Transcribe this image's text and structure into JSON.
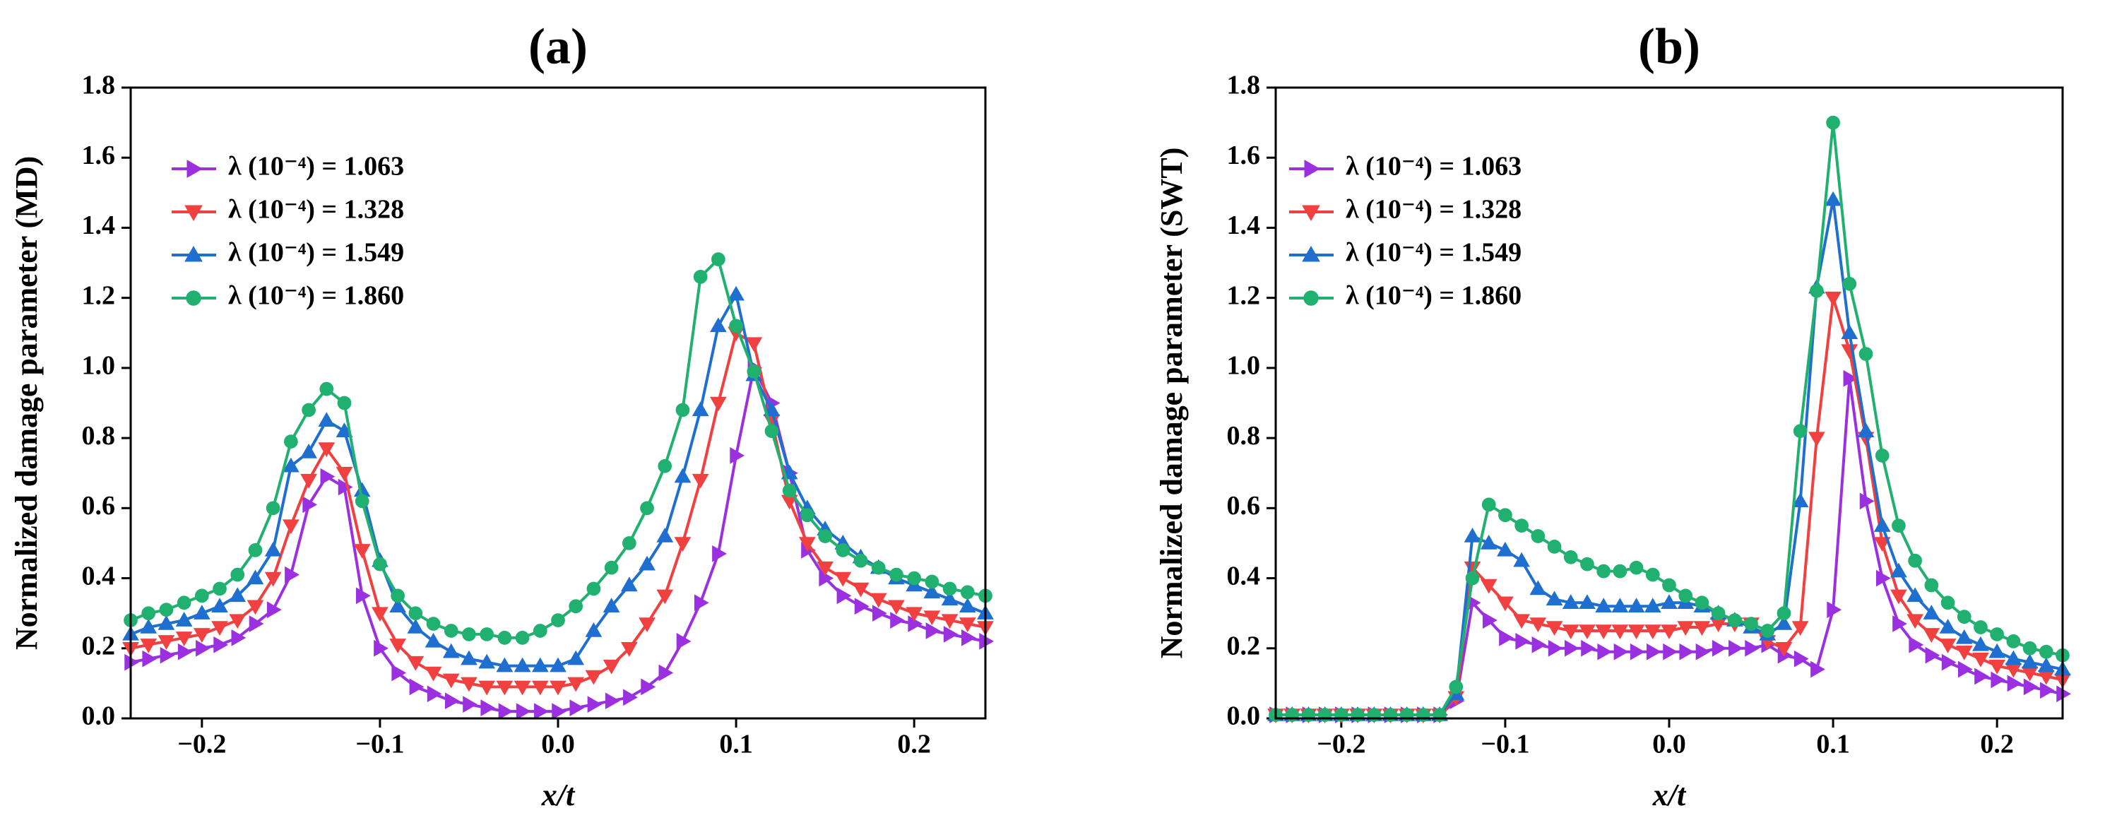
{
  "chart_data": [
    {
      "type": "line",
      "title": "(a)",
      "x_label": "x/t",
      "y_label": "Normalized damage parameter (MD)",
      "xlim": [
        -0.24,
        0.24
      ],
      "ylim": [
        0,
        1.8
      ],
      "xticks": [
        {
          "value": -0.2,
          "label": "−0.2"
        },
        {
          "value": -0.1,
          "label": "−0.1"
        },
        {
          "value": 0,
          "label": "0.0"
        },
        0.1,
        0.2
      ],
      "yticks": [
        {
          "value": 0,
          "label": "0.0"
        },
        0.2,
        0.4,
        0.6,
        0.8,
        {
          "value": 1,
          "label": "1.0"
        },
        1.2,
        1.4,
        1.6,
        1.8
      ],
      "legend": "upper left",
      "x": [
        -0.24,
        -0.23,
        -0.22,
        -0.21,
        -0.2,
        -0.19,
        -0.18,
        -0.17,
        -0.16,
        -0.15,
        -0.14,
        -0.13,
        -0.12,
        -0.11,
        -0.1,
        -0.09,
        -0.08,
        -0.07,
        -0.06,
        -0.05,
        -0.04,
        -0.03,
        -0.02,
        -0.01,
        0,
        0.01,
        0.02,
        0.03,
        0.04,
        0.05,
        0.06,
        0.07,
        0.08,
        0.09,
        0.1,
        0.11,
        0.12,
        0.13,
        0.14,
        0.15,
        0.16,
        0.17,
        0.18,
        0.19,
        0.2,
        0.21,
        0.22,
        0.23,
        0.24
      ],
      "series": [
        {
          "name": "λ (10⁻⁴) = 1.063",
          "color": "#9b30e0",
          "marker": "triangle-right",
          "values": [
            0.16,
            0.17,
            0.18,
            0.19,
            0.2,
            0.21,
            0.23,
            0.27,
            0.31,
            0.41,
            0.61,
            0.69,
            0.66,
            0.35,
            0.2,
            0.13,
            0.09,
            0.07,
            0.05,
            0.04,
            0.03,
            0.02,
            0.02,
            0.02,
            0.02,
            0.03,
            0.04,
            0.05,
            0.06,
            0.09,
            0.13,
            0.22,
            0.33,
            0.47,
            0.75,
            1.0,
            0.9,
            0.7,
            0.48,
            0.4,
            0.35,
            0.32,
            0.3,
            0.28,
            0.27,
            0.25,
            0.24,
            0.23,
            0.22
          ]
        },
        {
          "name": "λ (10⁻⁴) = 1.328",
          "color": "#f04040",
          "marker": "triangle-down",
          "values": [
            0.2,
            0.21,
            0.22,
            0.23,
            0.24,
            0.26,
            0.28,
            0.32,
            0.4,
            0.55,
            0.68,
            0.77,
            0.7,
            0.48,
            0.3,
            0.21,
            0.16,
            0.13,
            0.11,
            0.1,
            0.09,
            0.09,
            0.09,
            0.09,
            0.09,
            0.1,
            0.12,
            0.15,
            0.2,
            0.27,
            0.35,
            0.5,
            0.68,
            0.9,
            1.1,
            1.07,
            0.85,
            0.62,
            0.5,
            0.43,
            0.4,
            0.37,
            0.34,
            0.32,
            0.3,
            0.29,
            0.28,
            0.27,
            0.26
          ]
        },
        {
          "name": "λ (10⁻⁴) = 1.549",
          "color": "#1f6fd0",
          "marker": "triangle-up",
          "values": [
            0.24,
            0.26,
            0.27,
            0.28,
            0.3,
            0.32,
            0.35,
            0.4,
            0.48,
            0.72,
            0.76,
            0.85,
            0.82,
            0.65,
            0.45,
            0.32,
            0.26,
            0.22,
            0.19,
            0.17,
            0.16,
            0.15,
            0.15,
            0.15,
            0.15,
            0.17,
            0.25,
            0.32,
            0.38,
            0.44,
            0.52,
            0.69,
            0.88,
            1.12,
            1.21,
            0.98,
            0.88,
            0.7,
            0.6,
            0.54,
            0.5,
            0.46,
            0.43,
            0.4,
            0.38,
            0.36,
            0.34,
            0.32,
            0.3
          ]
        },
        {
          "name": "λ (10⁻⁴) = 1.860",
          "color": "#20b070",
          "marker": "circle",
          "values": [
            0.28,
            0.3,
            0.31,
            0.33,
            0.35,
            0.37,
            0.41,
            0.48,
            0.6,
            0.79,
            0.88,
            0.94,
            0.9,
            0.62,
            0.44,
            0.35,
            0.3,
            0.27,
            0.25,
            0.24,
            0.24,
            0.23,
            0.23,
            0.25,
            0.28,
            0.32,
            0.37,
            0.43,
            0.5,
            0.6,
            0.72,
            0.88,
            1.26,
            1.31,
            1.12,
            0.99,
            0.82,
            0.65,
            0.58,
            0.52,
            0.48,
            0.45,
            0.43,
            0.41,
            0.4,
            0.39,
            0.37,
            0.36,
            0.35
          ]
        }
      ]
    },
    {
      "type": "line",
      "title": "(b)",
      "x_label": "x/t",
      "y_label": "Normalized damage parameter (SWT)",
      "xlim": [
        -0.24,
        0.24
      ],
      "ylim": [
        0,
        1.8
      ],
      "xticks": [
        {
          "value": -0.2,
          "label": "−0.2"
        },
        {
          "value": -0.1,
          "label": "−0.1"
        },
        {
          "value": 0,
          "label": "0.0"
        },
        0.1,
        0.2
      ],
      "yticks": [
        {
          "value": 0,
          "label": "0.0"
        },
        0.2,
        0.4,
        0.6,
        0.8,
        {
          "value": 1,
          "label": "1.0"
        },
        1.2,
        1.4,
        1.6,
        1.8
      ],
      "legend": "upper left",
      "x": [
        -0.24,
        -0.23,
        -0.22,
        -0.21,
        -0.2,
        -0.19,
        -0.18,
        -0.17,
        -0.16,
        -0.15,
        -0.14,
        -0.13,
        -0.12,
        -0.11,
        -0.1,
        -0.09,
        -0.08,
        -0.07,
        -0.06,
        -0.05,
        -0.04,
        -0.03,
        -0.02,
        -0.01,
        0,
        0.01,
        0.02,
        0.03,
        0.04,
        0.05,
        0.06,
        0.07,
        0.08,
        0.09,
        0.1,
        0.11,
        0.12,
        0.13,
        0.14,
        0.15,
        0.16,
        0.17,
        0.18,
        0.19,
        0.2,
        0.21,
        0.22,
        0.23,
        0.24
      ],
      "series": [
        {
          "name": "λ (10⁻⁴) = 1.063",
          "color": "#9b30e0",
          "marker": "triangle-right",
          "values": [
            0.01,
            0.01,
            0.01,
            0.01,
            0.01,
            0.01,
            0.01,
            0.01,
            0.01,
            0.01,
            0.01,
            0.05,
            0.33,
            0.28,
            0.23,
            0.22,
            0.21,
            0.2,
            0.2,
            0.2,
            0.19,
            0.19,
            0.19,
            0.19,
            0.19,
            0.19,
            0.19,
            0.2,
            0.2,
            0.2,
            0.21,
            0.18,
            0.17,
            0.14,
            0.31,
            0.97,
            0.62,
            0.4,
            0.27,
            0.21,
            0.18,
            0.16,
            0.14,
            0.12,
            0.11,
            0.1,
            0.09,
            0.08,
            0.07
          ]
        },
        {
          "name": "λ (10⁻⁴) = 1.328",
          "color": "#f04040",
          "marker": "triangle-down",
          "values": [
            0.01,
            0.01,
            0.01,
            0.01,
            0.01,
            0.01,
            0.01,
            0.01,
            0.01,
            0.01,
            0.01,
            0.06,
            0.43,
            0.38,
            0.33,
            0.28,
            0.27,
            0.26,
            0.25,
            0.25,
            0.25,
            0.25,
            0.25,
            0.25,
            0.25,
            0.26,
            0.26,
            0.27,
            0.27,
            0.27,
            0.22,
            0.2,
            0.26,
            0.8,
            1.2,
            1.05,
            0.8,
            0.5,
            0.35,
            0.28,
            0.24,
            0.21,
            0.19,
            0.17,
            0.15,
            0.14,
            0.13,
            0.12,
            0.11
          ]
        },
        {
          "name": "λ (10⁻⁴) = 1.549",
          "color": "#1f6fd0",
          "marker": "triangle-up",
          "values": [
            0.01,
            0.01,
            0.01,
            0.01,
            0.01,
            0.01,
            0.01,
            0.01,
            0.01,
            0.01,
            0.01,
            0.07,
            0.52,
            0.5,
            0.48,
            0.45,
            0.37,
            0.34,
            0.33,
            0.33,
            0.32,
            0.32,
            0.32,
            0.32,
            0.33,
            0.33,
            0.32,
            0.3,
            0.28,
            0.26,
            0.24,
            0.27,
            0.62,
            1.23,
            1.48,
            1.1,
            0.82,
            0.55,
            0.42,
            0.35,
            0.3,
            0.26,
            0.23,
            0.21,
            0.19,
            0.17,
            0.16,
            0.15,
            0.14
          ]
        },
        {
          "name": "λ (10⁻⁴) = 1.860",
          "color": "#20b070",
          "marker": "circle",
          "values": [
            0.01,
            0.01,
            0.01,
            0.01,
            0.01,
            0.01,
            0.01,
            0.01,
            0.01,
            0.01,
            0.01,
            0.09,
            0.4,
            0.61,
            0.58,
            0.55,
            0.52,
            0.49,
            0.46,
            0.44,
            0.42,
            0.42,
            0.43,
            0.41,
            0.38,
            0.35,
            0.33,
            0.3,
            0.28,
            0.27,
            0.25,
            0.3,
            0.82,
            1.22,
            1.7,
            1.24,
            1.04,
            0.75,
            0.55,
            0.45,
            0.38,
            0.33,
            0.29,
            0.26,
            0.24,
            0.22,
            0.2,
            0.19,
            0.18
          ]
        }
      ]
    }
  ]
}
